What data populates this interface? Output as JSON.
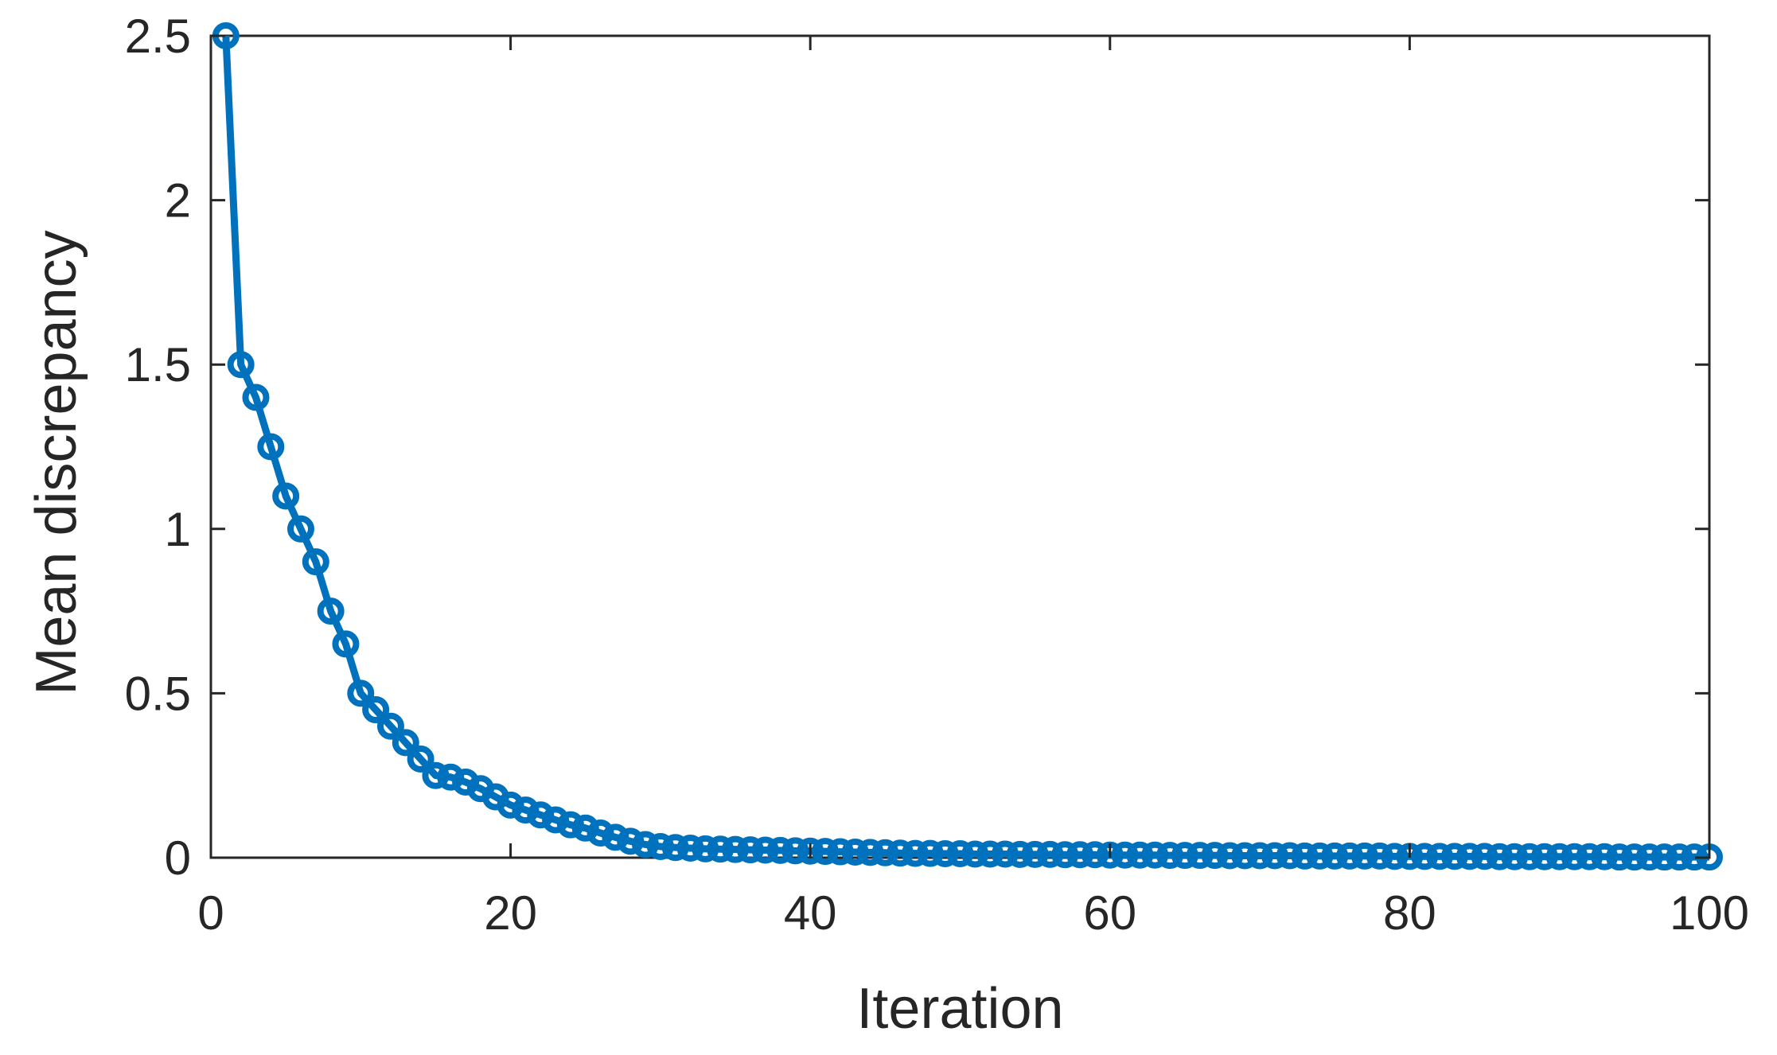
{
  "chart_data": {
    "type": "line",
    "title": "",
    "xlabel": "Iteration",
    "ylabel": "Mean discrepancy",
    "xlim": [
      0,
      100
    ],
    "ylim": [
      0,
      2.5
    ],
    "xticks": [
      "0",
      "20",
      "40",
      "60",
      "80",
      "100"
    ],
    "yticks": [
      "0",
      "0.5",
      "1",
      "1.5",
      "2",
      "2.5"
    ],
    "grid": false,
    "marker": "circle",
    "series": [
      {
        "color": "#0072BD",
        "x": [
          1,
          2,
          3,
          4,
          5,
          6,
          7,
          8,
          9,
          10,
          11,
          12,
          13,
          14,
          15,
          16,
          17,
          18,
          19,
          20,
          21,
          22,
          23,
          24,
          25,
          26,
          27,
          28,
          29,
          30,
          31,
          32,
          33,
          34,
          35,
          36,
          37,
          38,
          39,
          40,
          41,
          42,
          43,
          44,
          45,
          46,
          47,
          48,
          49,
          50,
          51,
          52,
          53,
          54,
          55,
          56,
          57,
          58,
          59,
          60,
          61,
          62,
          63,
          64,
          65,
          66,
          67,
          68,
          69,
          70,
          71,
          72,
          73,
          74,
          75,
          76,
          77,
          78,
          79,
          80,
          81,
          82,
          83,
          84,
          85,
          86,
          87,
          88,
          89,
          90,
          91,
          92,
          93,
          94,
          95,
          96,
          97,
          98,
          99,
          100
        ],
        "values": [
          2.5,
          1.5,
          1.4,
          1.25,
          1.1,
          1.0,
          0.9,
          0.75,
          0.65,
          0.5,
          0.45,
          0.4,
          0.35,
          0.3,
          0.25,
          0.245,
          0.23,
          0.21,
          0.185,
          0.16,
          0.145,
          0.13,
          0.115,
          0.1,
          0.09,
          0.075,
          0.062,
          0.05,
          0.04,
          0.034,
          0.031,
          0.029,
          0.027,
          0.026,
          0.025,
          0.024,
          0.023,
          0.022,
          0.021,
          0.02,
          0.019,
          0.018,
          0.017,
          0.016,
          0.015,
          0.014,
          0.013,
          0.013,
          0.012,
          0.012,
          0.011,
          0.011,
          0.011,
          0.01,
          0.01,
          0.01,
          0.009,
          0.009,
          0.009,
          0.008,
          0.008,
          0.008,
          0.008,
          0.007,
          0.007,
          0.007,
          0.007,
          0.006,
          0.006,
          0.006,
          0.006,
          0.006,
          0.005,
          0.005,
          0.005,
          0.005,
          0.005,
          0.005,
          0.004,
          0.004,
          0.004,
          0.004,
          0.004,
          0.004,
          0.004,
          0.003,
          0.003,
          0.003,
          0.003,
          0.003,
          0.003,
          0.003,
          0.003,
          0.002,
          0.002,
          0.002,
          0.002,
          0.002,
          0.002,
          0.002
        ]
      }
    ]
  }
}
